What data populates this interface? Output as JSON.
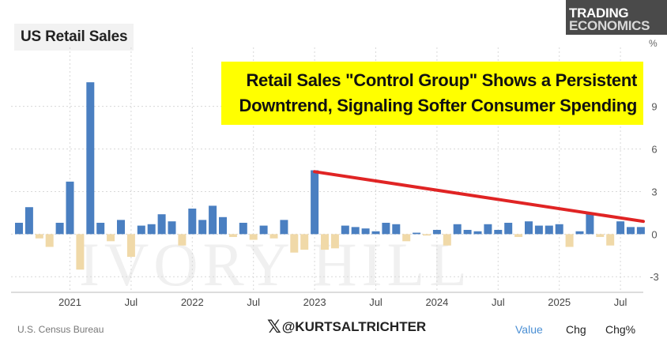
{
  "header": {
    "title": "US Retail Sales",
    "logo_line1": "TRADING",
    "logo_line2": "ECONOMICS",
    "unit_label": "%"
  },
  "callout": {
    "line1": "Retail Sales \"Control Group\" Shows a Persistent",
    "line2": "Downtrend, Signaling Softer Consumer Spending"
  },
  "watermark": "IVORY HILL",
  "footer": {
    "source": "U.S. Census Bureau",
    "handle": "@KURTSALTRICHTER",
    "x_glyph": "𝕏",
    "toggles": [
      "Value",
      "Chg",
      "Chg%"
    ]
  },
  "colors": {
    "positive_bar": "#4a7fc1",
    "negative_bar": "#f0d9a8",
    "trend_line": "#e02424",
    "grid": "#d8d8d8",
    "callout_bg": "#ffff00"
  },
  "chart_data": {
    "type": "bar",
    "title": "US Retail Sales",
    "ylabel": "%",
    "ylim": [
      -4.1,
      12.6
    ],
    "yticks": [
      -3,
      0,
      3,
      6,
      9
    ],
    "x_start": "2020-08",
    "values": [
      0.8,
      1.9,
      -0.3,
      -0.9,
      0.8,
      3.7,
      -2.5,
      10.7,
      0.8,
      -0.5,
      1.0,
      -1.6,
      0.6,
      0.7,
      1.4,
      0.9,
      -0.8,
      1.8,
      1.0,
      2.0,
      1.2,
      -0.2,
      0.8,
      -0.4,
      0.6,
      -0.3,
      1.0,
      -1.3,
      -1.1,
      4.5,
      -1.1,
      -1.0,
      0.6,
      0.5,
      0.4,
      0.2,
      0.8,
      0.7,
      -0.5,
      0.1,
      -0.1,
      0.3,
      -0.8,
      0.7,
      0.3,
      0.2,
      0.7,
      0.3,
      0.8,
      -0.2,
      0.9,
      0.6,
      0.6,
      0.7,
      -0.9,
      0.2,
      1.5,
      -0.2,
      -0.8,
      0.9,
      0.5,
      0.5
    ],
    "x_tick_labels": [
      {
        "label": "2021",
        "month": "2021-01"
      },
      {
        "label": "Jul",
        "month": "2021-07"
      },
      {
        "label": "2022",
        "month": "2022-01"
      },
      {
        "label": "Jul",
        "month": "2022-07"
      },
      {
        "label": "2023",
        "month": "2023-01"
      },
      {
        "label": "Jul",
        "month": "2023-07"
      },
      {
        "label": "2024",
        "month": "2024-01"
      },
      {
        "label": "Jul",
        "month": "2024-07"
      },
      {
        "label": "2025",
        "month": "2025-01"
      },
      {
        "label": "Jul",
        "month": "2025-07"
      }
    ],
    "trend_line": {
      "start": {
        "month": "2023-01",
        "value": 4.4
      },
      "end": {
        "month": "2025-09",
        "value": 0.9
      }
    },
    "grid": true
  }
}
